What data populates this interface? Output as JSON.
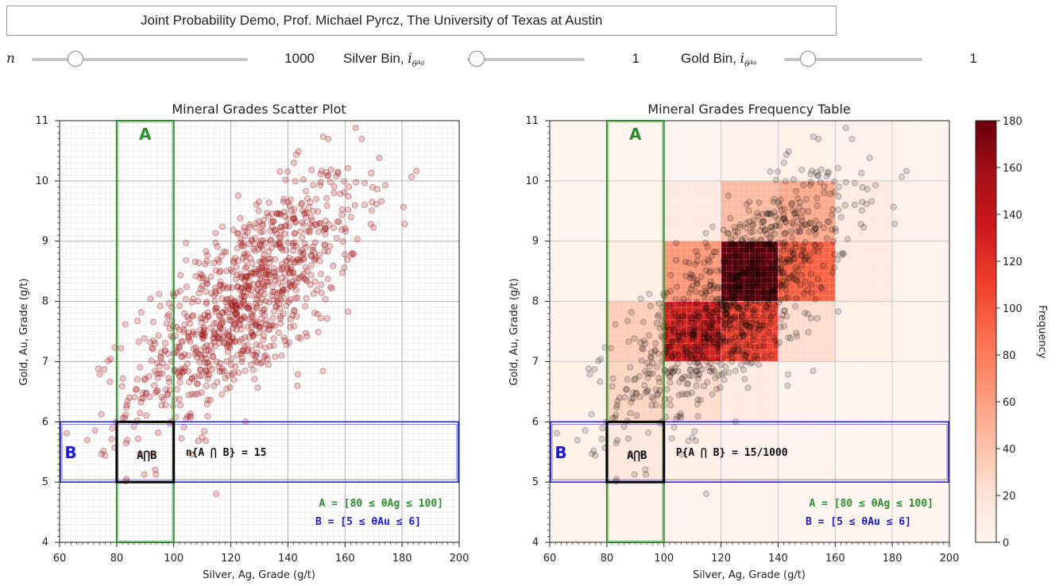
{
  "header": {
    "title": "Joint Probability Demo, Prof. Michael Pyrcz, The University of Texas at Austin"
  },
  "controls": [
    {
      "name": "n",
      "label_main": "n",
      "label_sub": "",
      "label_sub2": "",
      "value": "1000",
      "knob_fraction": 0.2
    },
    {
      "name": "silver-bin",
      "label_main": "Silver Bin, ",
      "label_sym": "i",
      "label_sub": "θ",
      "label_sub2": "Ag",
      "value": "1",
      "knob_fraction": 0.0
    },
    {
      "name": "gold-bin",
      "label_main": "Gold Bin, ",
      "label_sym": "i",
      "label_sub": "θ",
      "label_sub2": "Au",
      "value": "1",
      "knob_fraction": 0.0
    }
  ],
  "annotations": {
    "event_a": "A",
    "event_b": "B",
    "intersection": "A⋂B",
    "count_text": "n{A ⋂ B} = 15",
    "prob_text": "P{A ⋂ B} = 15/1000",
    "def_a": "A = [80 ≤ θAg ≤ 100]",
    "def_b": "B = [5 ≤ θAu ≤ 6]"
  },
  "colors": {
    "event_a": "#2e8b2e",
    "event_b": "#1a1adb",
    "point": "#a01818",
    "colormap_low": "#fff5f0",
    "colormap_high": "#67000d"
  },
  "chart_data": [
    {
      "type": "scatter",
      "title": "Mineral Grades Scatter Plot",
      "xlabel": "Silver, Ag, Grade (g/t)",
      "ylabel": "Gold, Au, Grade (g/t)",
      "xlim": [
        60,
        200
      ],
      "ylim": [
        4,
        11
      ],
      "xticks": [
        60,
        80,
        100,
        120,
        140,
        160,
        180,
        200
      ],
      "yticks": [
        4,
        5,
        6,
        7,
        8,
        9,
        10,
        11
      ],
      "grid": true,
      "n_points": 1000,
      "points_in_a_and_b": 15,
      "event_a_range": [
        80,
        100
      ],
      "event_b_range": [
        5,
        6
      ]
    },
    {
      "type": "heatmap",
      "title": "Mineral Grades Frequency Table",
      "xlabel": "Silver, Ag, Grade (g/t)",
      "ylabel": "Gold, Au, Grade (g/t)",
      "xlim": [
        60,
        200
      ],
      "ylim": [
        4,
        11
      ],
      "x_bins": [
        60,
        80,
        100,
        120,
        140,
        160,
        180,
        200
      ],
      "y_bins": [
        4,
        5,
        6,
        7,
        8,
        9,
        10,
        11
      ],
      "colorbar_label": "Frequency",
      "colorbar_range": [
        0,
        180
      ],
      "colorbar_ticks": [
        0,
        20,
        40,
        60,
        80,
        100,
        120,
        140,
        160,
        180
      ],
      "cells": [
        {
          "x0": 60,
          "y0": 4,
          "count": 2
        },
        {
          "x0": 80,
          "y0": 4,
          "count": 3
        },
        {
          "x0": 100,
          "y0": 4,
          "count": 2
        },
        {
          "x0": 120,
          "y0": 4,
          "count": 1
        },
        {
          "x0": 140,
          "y0": 4,
          "count": 0
        },
        {
          "x0": 160,
          "y0": 4,
          "count": 0
        },
        {
          "x0": 180,
          "y0": 4,
          "count": 0
        },
        {
          "x0": 60,
          "y0": 5,
          "count": 5
        },
        {
          "x0": 80,
          "y0": 5,
          "count": 15
        },
        {
          "x0": 100,
          "y0": 5,
          "count": 6
        },
        {
          "x0": 120,
          "y0": 5,
          "count": 3
        },
        {
          "x0": 140,
          "y0": 5,
          "count": 1
        },
        {
          "x0": 160,
          "y0": 5,
          "count": 0
        },
        {
          "x0": 180,
          "y0": 5,
          "count": 0
        },
        {
          "x0": 60,
          "y0": 6,
          "count": 5
        },
        {
          "x0": 80,
          "y0": 6,
          "count": 30
        },
        {
          "x0": 100,
          "y0": 6,
          "count": 25
        },
        {
          "x0": 120,
          "y0": 6,
          "count": 12
        },
        {
          "x0": 140,
          "y0": 6,
          "count": 3
        },
        {
          "x0": 160,
          "y0": 6,
          "count": 1
        },
        {
          "x0": 180,
          "y0": 6,
          "count": 0
        },
        {
          "x0": 60,
          "y0": 7,
          "count": 3
        },
        {
          "x0": 80,
          "y0": 7,
          "count": 35
        },
        {
          "x0": 100,
          "y0": 7,
          "count": 130
        },
        {
          "x0": 120,
          "y0": 7,
          "count": 110
        },
        {
          "x0": 140,
          "y0": 7,
          "count": 25
        },
        {
          "x0": 160,
          "y0": 7,
          "count": 5
        },
        {
          "x0": 180,
          "y0": 7,
          "count": 1
        },
        {
          "x0": 60,
          "y0": 8,
          "count": 1
        },
        {
          "x0": 80,
          "y0": 8,
          "count": 8
        },
        {
          "x0": 100,
          "y0": 8,
          "count": 65
        },
        {
          "x0": 120,
          "y0": 8,
          "count": 180
        },
        {
          "x0": 140,
          "y0": 8,
          "count": 95
        },
        {
          "x0": 160,
          "y0": 8,
          "count": 12
        },
        {
          "x0": 180,
          "y0": 8,
          "count": 2
        },
        {
          "x0": 60,
          "y0": 9,
          "count": 0
        },
        {
          "x0": 80,
          "y0": 9,
          "count": 2
        },
        {
          "x0": 100,
          "y0": 9,
          "count": 12
        },
        {
          "x0": 120,
          "y0": 9,
          "count": 45
        },
        {
          "x0": 140,
          "y0": 9,
          "count": 55
        },
        {
          "x0": 160,
          "y0": 9,
          "count": 12
        },
        {
          "x0": 180,
          "y0": 9,
          "count": 3
        },
        {
          "x0": 60,
          "y0": 10,
          "count": 0
        },
        {
          "x0": 80,
          "y0": 10,
          "count": 0
        },
        {
          "x0": 100,
          "y0": 10,
          "count": 1
        },
        {
          "x0": 120,
          "y0": 10,
          "count": 3
        },
        {
          "x0": 140,
          "y0": 10,
          "count": 5
        },
        {
          "x0": 160,
          "y0": 10,
          "count": 4
        },
        {
          "x0": 180,
          "y0": 10,
          "count": 2
        }
      ]
    }
  ]
}
